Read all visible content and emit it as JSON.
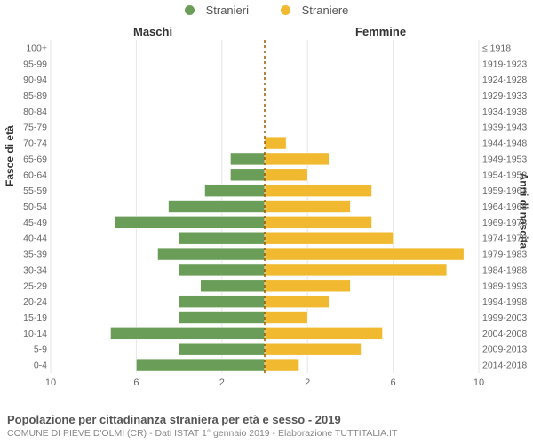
{
  "legend": {
    "male": {
      "label": "Stranieri",
      "color": "#6a9e58"
    },
    "female": {
      "label": "Straniere",
      "color": "#f0b92f"
    }
  },
  "headers": {
    "male": "Maschi",
    "female": "Femmine"
  },
  "axis_y_left_label": "Fasce di età",
  "axis_y_right_label": "Anni di nascita",
  "pyramid": {
    "type": "population-pyramid",
    "xmax": 10,
    "xticks": [
      10,
      6,
      2,
      2,
      6,
      10
    ],
    "grid_color": "#e5e5e5",
    "centerline_color": "#a05a00",
    "background_color": "#ffffff",
    "row_height": 17.2,
    "bar_fill_ratio": 0.78,
    "male_color": "#6a9e58",
    "female_color": "#f0b92f",
    "label_fontsize": 10.5,
    "tick_fontsize": 11,
    "rows": [
      {
        "age": "100+",
        "birth": "≤ 1918",
        "m": 0,
        "f": 0
      },
      {
        "age": "95-99",
        "birth": "1919-1923",
        "m": 0,
        "f": 0
      },
      {
        "age": "90-94",
        "birth": "1924-1928",
        "m": 0,
        "f": 0
      },
      {
        "age": "85-89",
        "birth": "1929-1933",
        "m": 0,
        "f": 0
      },
      {
        "age": "80-84",
        "birth": "1934-1938",
        "m": 0,
        "f": 0
      },
      {
        "age": "75-79",
        "birth": "1939-1943",
        "m": 0,
        "f": 0
      },
      {
        "age": "70-74",
        "birth": "1944-1948",
        "m": 0,
        "f": 1
      },
      {
        "age": "65-69",
        "birth": "1949-1953",
        "m": 1.6,
        "f": 3
      },
      {
        "age": "60-64",
        "birth": "1954-1958",
        "m": 1.6,
        "f": 2
      },
      {
        "age": "55-59",
        "birth": "1959-1963",
        "m": 2.8,
        "f": 5
      },
      {
        "age": "50-54",
        "birth": "1964-1968",
        "m": 4.5,
        "f": 4
      },
      {
        "age": "45-49",
        "birth": "1969-1973",
        "m": 7,
        "f": 5
      },
      {
        "age": "40-44",
        "birth": "1974-1978",
        "m": 4,
        "f": 6
      },
      {
        "age": "35-39",
        "birth": "1979-1983",
        "m": 5,
        "f": 9.3
      },
      {
        "age": "30-34",
        "birth": "1984-1988",
        "m": 4,
        "f": 8.5
      },
      {
        "age": "25-29",
        "birth": "1989-1993",
        "m": 3,
        "f": 4
      },
      {
        "age": "20-24",
        "birth": "1994-1998",
        "m": 4,
        "f": 3
      },
      {
        "age": "15-19",
        "birth": "1999-2003",
        "m": 4,
        "f": 2
      },
      {
        "age": "10-14",
        "birth": "2004-2008",
        "m": 7.2,
        "f": 5.5
      },
      {
        "age": "5-9",
        "birth": "2009-2013",
        "m": 4,
        "f": 4.5
      },
      {
        "age": "0-4",
        "birth": "2014-2018",
        "m": 6,
        "f": 1.6
      }
    ]
  },
  "footer": {
    "title": "Popolazione per cittadinanza straniera per età e sesso - 2019",
    "subtitle": "COMUNE DI PIEVE D'OLMI (CR) - Dati ISTAT 1° gennaio 2019 - Elaborazione TUTTITALIA.IT"
  }
}
